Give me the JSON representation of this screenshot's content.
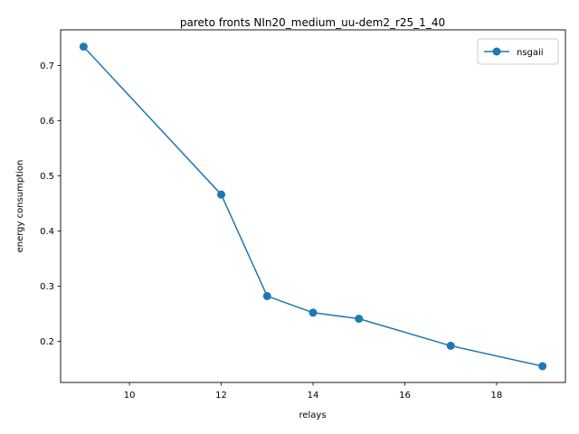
{
  "chart_data": {
    "type": "line",
    "title": "pareto fronts NIn20_medium_uu-dem2_r25_1_40",
    "xlabel": "relays",
    "ylabel": "energy consumption",
    "xlim": [
      8.5,
      19.5
    ],
    "ylim": [
      0.1255,
      0.7645
    ],
    "xticks": [
      10,
      12,
      14,
      16,
      18
    ],
    "yticks": [
      0.2,
      0.3,
      0.4,
      0.5,
      0.6,
      0.7
    ],
    "xtick_labels": [
      "10",
      "12",
      "14",
      "16",
      "18"
    ],
    "ytick_labels": [
      "0.2",
      "0.3",
      "0.4",
      "0.5",
      "0.6",
      "0.7"
    ],
    "grid": false,
    "legend_position": "top-right",
    "series": [
      {
        "name": "nsgaii",
        "color": "#1f77b4",
        "marker": "circle",
        "x": [
          9,
          12,
          13,
          14,
          15,
          17,
          19
        ],
        "y": [
          0.734,
          0.466,
          0.282,
          0.252,
          0.241,
          0.192,
          0.155
        ]
      }
    ]
  }
}
